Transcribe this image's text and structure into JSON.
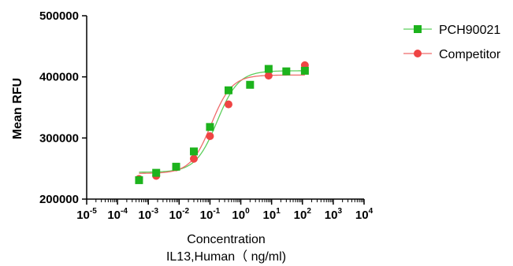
{
  "chart_data": {
    "type": "scatter",
    "title": "",
    "xlabel": "Concentration",
    "xlabel2": "IL13,Human（ ng/ml)",
    "ylabel": "Mean RFU",
    "xscale": "log",
    "xlim": [
      1e-05,
      10000
    ],
    "ylim": [
      200000,
      500000
    ],
    "yticks": [
      200000,
      300000,
      400000,
      500000
    ],
    "ytick_labels": [
      "200000",
      "300000",
      "400000",
      "500000"
    ],
    "xtick_exponents": [
      "-5",
      "-4",
      "-3",
      "-2",
      "-1",
      "0",
      "1",
      "2",
      "3",
      "4"
    ],
    "xtick_base": "10",
    "grid": false,
    "legend_position": "top-right",
    "series": [
      {
        "name": "PCH90021",
        "marker": "square",
        "color": "#1db31d",
        "line_color": "#5ccf5c",
        "x": [
          0.0005,
          0.0018,
          0.008,
          0.03,
          0.1,
          0.4,
          2,
          8,
          30,
          120
        ],
        "y": [
          231000,
          243000,
          253000,
          278000,
          318000,
          378000,
          387000,
          413000,
          409000,
          410000
        ],
        "fit": {
          "bottom": 244000,
          "top": 410000,
          "ec50": 0.17,
          "hill": 1.25
        }
      },
      {
        "name": "Competitor",
        "marker": "circle",
        "color": "#ef4444",
        "line_color": "#ef6b6b",
        "x": [
          0.0005,
          0.0018,
          0.008,
          0.03,
          0.1,
          0.4,
          8,
          120
        ],
        "y": [
          233000,
          238000,
          252000,
          266000,
          303000,
          355000,
          402000,
          419000
        ],
        "fit": {
          "bottom": 242000,
          "top": 403000,
          "ec50": 0.11,
          "hill": 1.3
        }
      }
    ]
  }
}
